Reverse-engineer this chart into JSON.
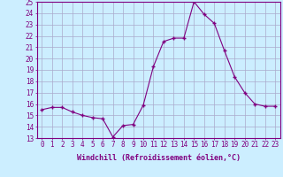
{
  "x": [
    0,
    1,
    2,
    3,
    4,
    5,
    6,
    7,
    8,
    9,
    10,
    11,
    12,
    13,
    14,
    15,
    16,
    17,
    18,
    19,
    20,
    21,
    22,
    23
  ],
  "y": [
    15.5,
    15.7,
    15.7,
    15.3,
    15.0,
    14.8,
    14.7,
    13.1,
    14.1,
    14.2,
    15.9,
    19.3,
    21.5,
    21.8,
    21.8,
    25.0,
    23.9,
    23.1,
    20.7,
    18.4,
    17.0,
    16.0,
    15.8,
    15.8
  ],
  "ylim": [
    13,
    25
  ],
  "yticks": [
    13,
    14,
    15,
    16,
    17,
    18,
    19,
    20,
    21,
    22,
    23,
    24,
    25
  ],
  "xlabel": "Windchill (Refroidissement éolien,°C)",
  "line_color": "#800080",
  "marker_color": "#800080",
  "bg_color": "#cceeff",
  "grid_color": "#aaaacc",
  "label_color": "#800080",
  "xlabel_fontsize": 6.0,
  "tick_fontsize": 5.5,
  "spine_color": "#800080",
  "xlim_left": -0.5,
  "xlim_right": 23.5
}
